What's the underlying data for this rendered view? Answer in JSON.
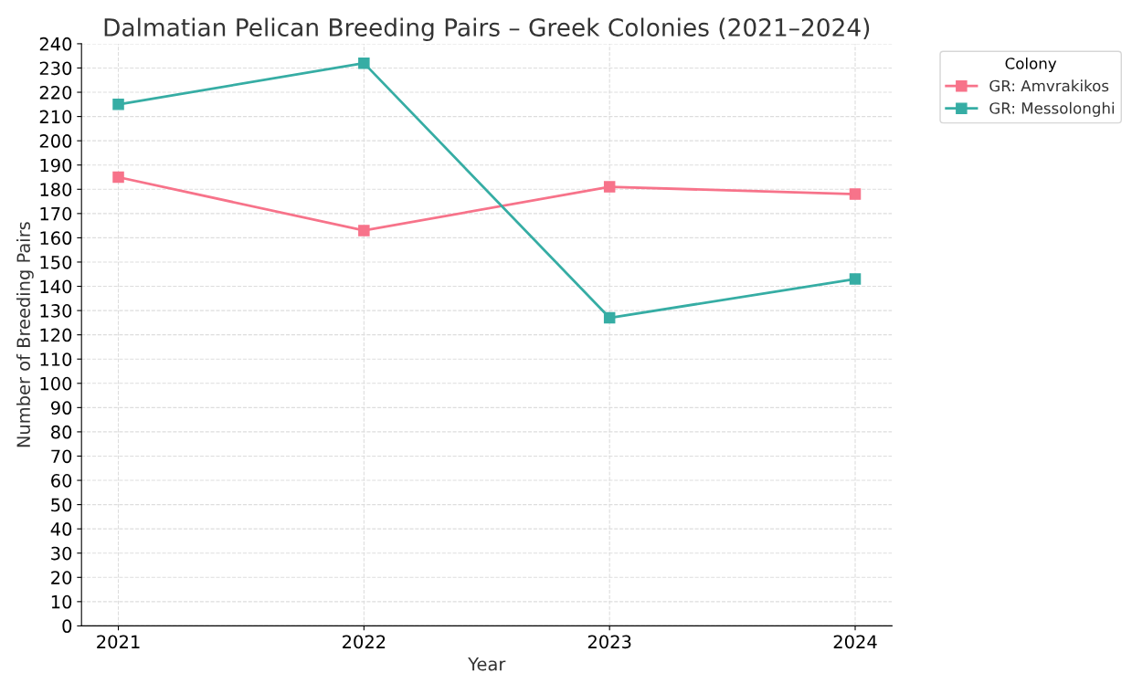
{
  "chart_data": {
    "type": "line",
    "title": "Dalmatian Pelican Breeding Pairs – Greek Colonies (2021–2024)",
    "xlabel": "Year",
    "ylabel": "Number of Breeding Pairs",
    "legend_title": "Colony",
    "categories": [
      "2021",
      "2022",
      "2023",
      "2024"
    ],
    "series": [
      {
        "name": "GR: Amvrakikos",
        "color": "#f7738a",
        "values": [
          185,
          163,
          181,
          178
        ]
      },
      {
        "name": "GR: Messolonghi",
        "color": "#36ada4",
        "values": [
          215,
          232,
          127,
          143
        ]
      }
    ],
    "ylim": [
      0,
      240
    ],
    "yticks": [
      0,
      10,
      20,
      30,
      40,
      50,
      60,
      70,
      80,
      90,
      100,
      110,
      120,
      130,
      140,
      150,
      160,
      170,
      180,
      190,
      200,
      210,
      220,
      230,
      240
    ],
    "grid": true,
    "legend": "top right",
    "marker": "square",
    "line_style": "solid"
  }
}
